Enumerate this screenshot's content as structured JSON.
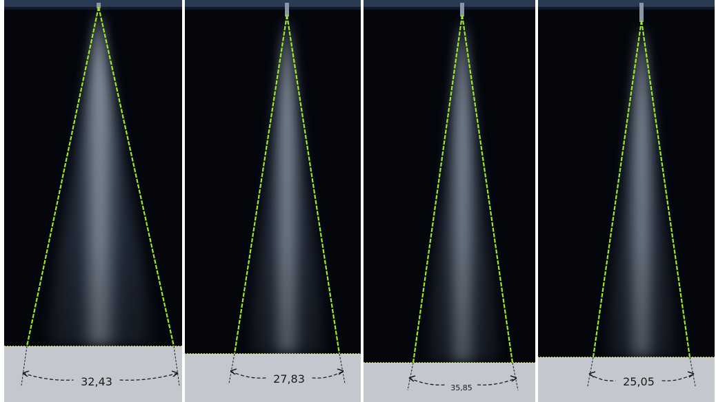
{
  "figure": {
    "panels": [
      {
        "id": "a",
        "angle_label": "32,43"
      },
      {
        "id": "b",
        "angle_label": "27,83"
      },
      {
        "id": "c",
        "angle_label": "35,85"
      },
      {
        "id": "d",
        "angle_label": "25,05"
      }
    ],
    "colors": {
      "background": "#04060c",
      "spray": "#b8c8d8",
      "cone_lines": "#9be82a",
      "floor": "#c4c8ce",
      "dimension": "#1a1a1a"
    }
  }
}
